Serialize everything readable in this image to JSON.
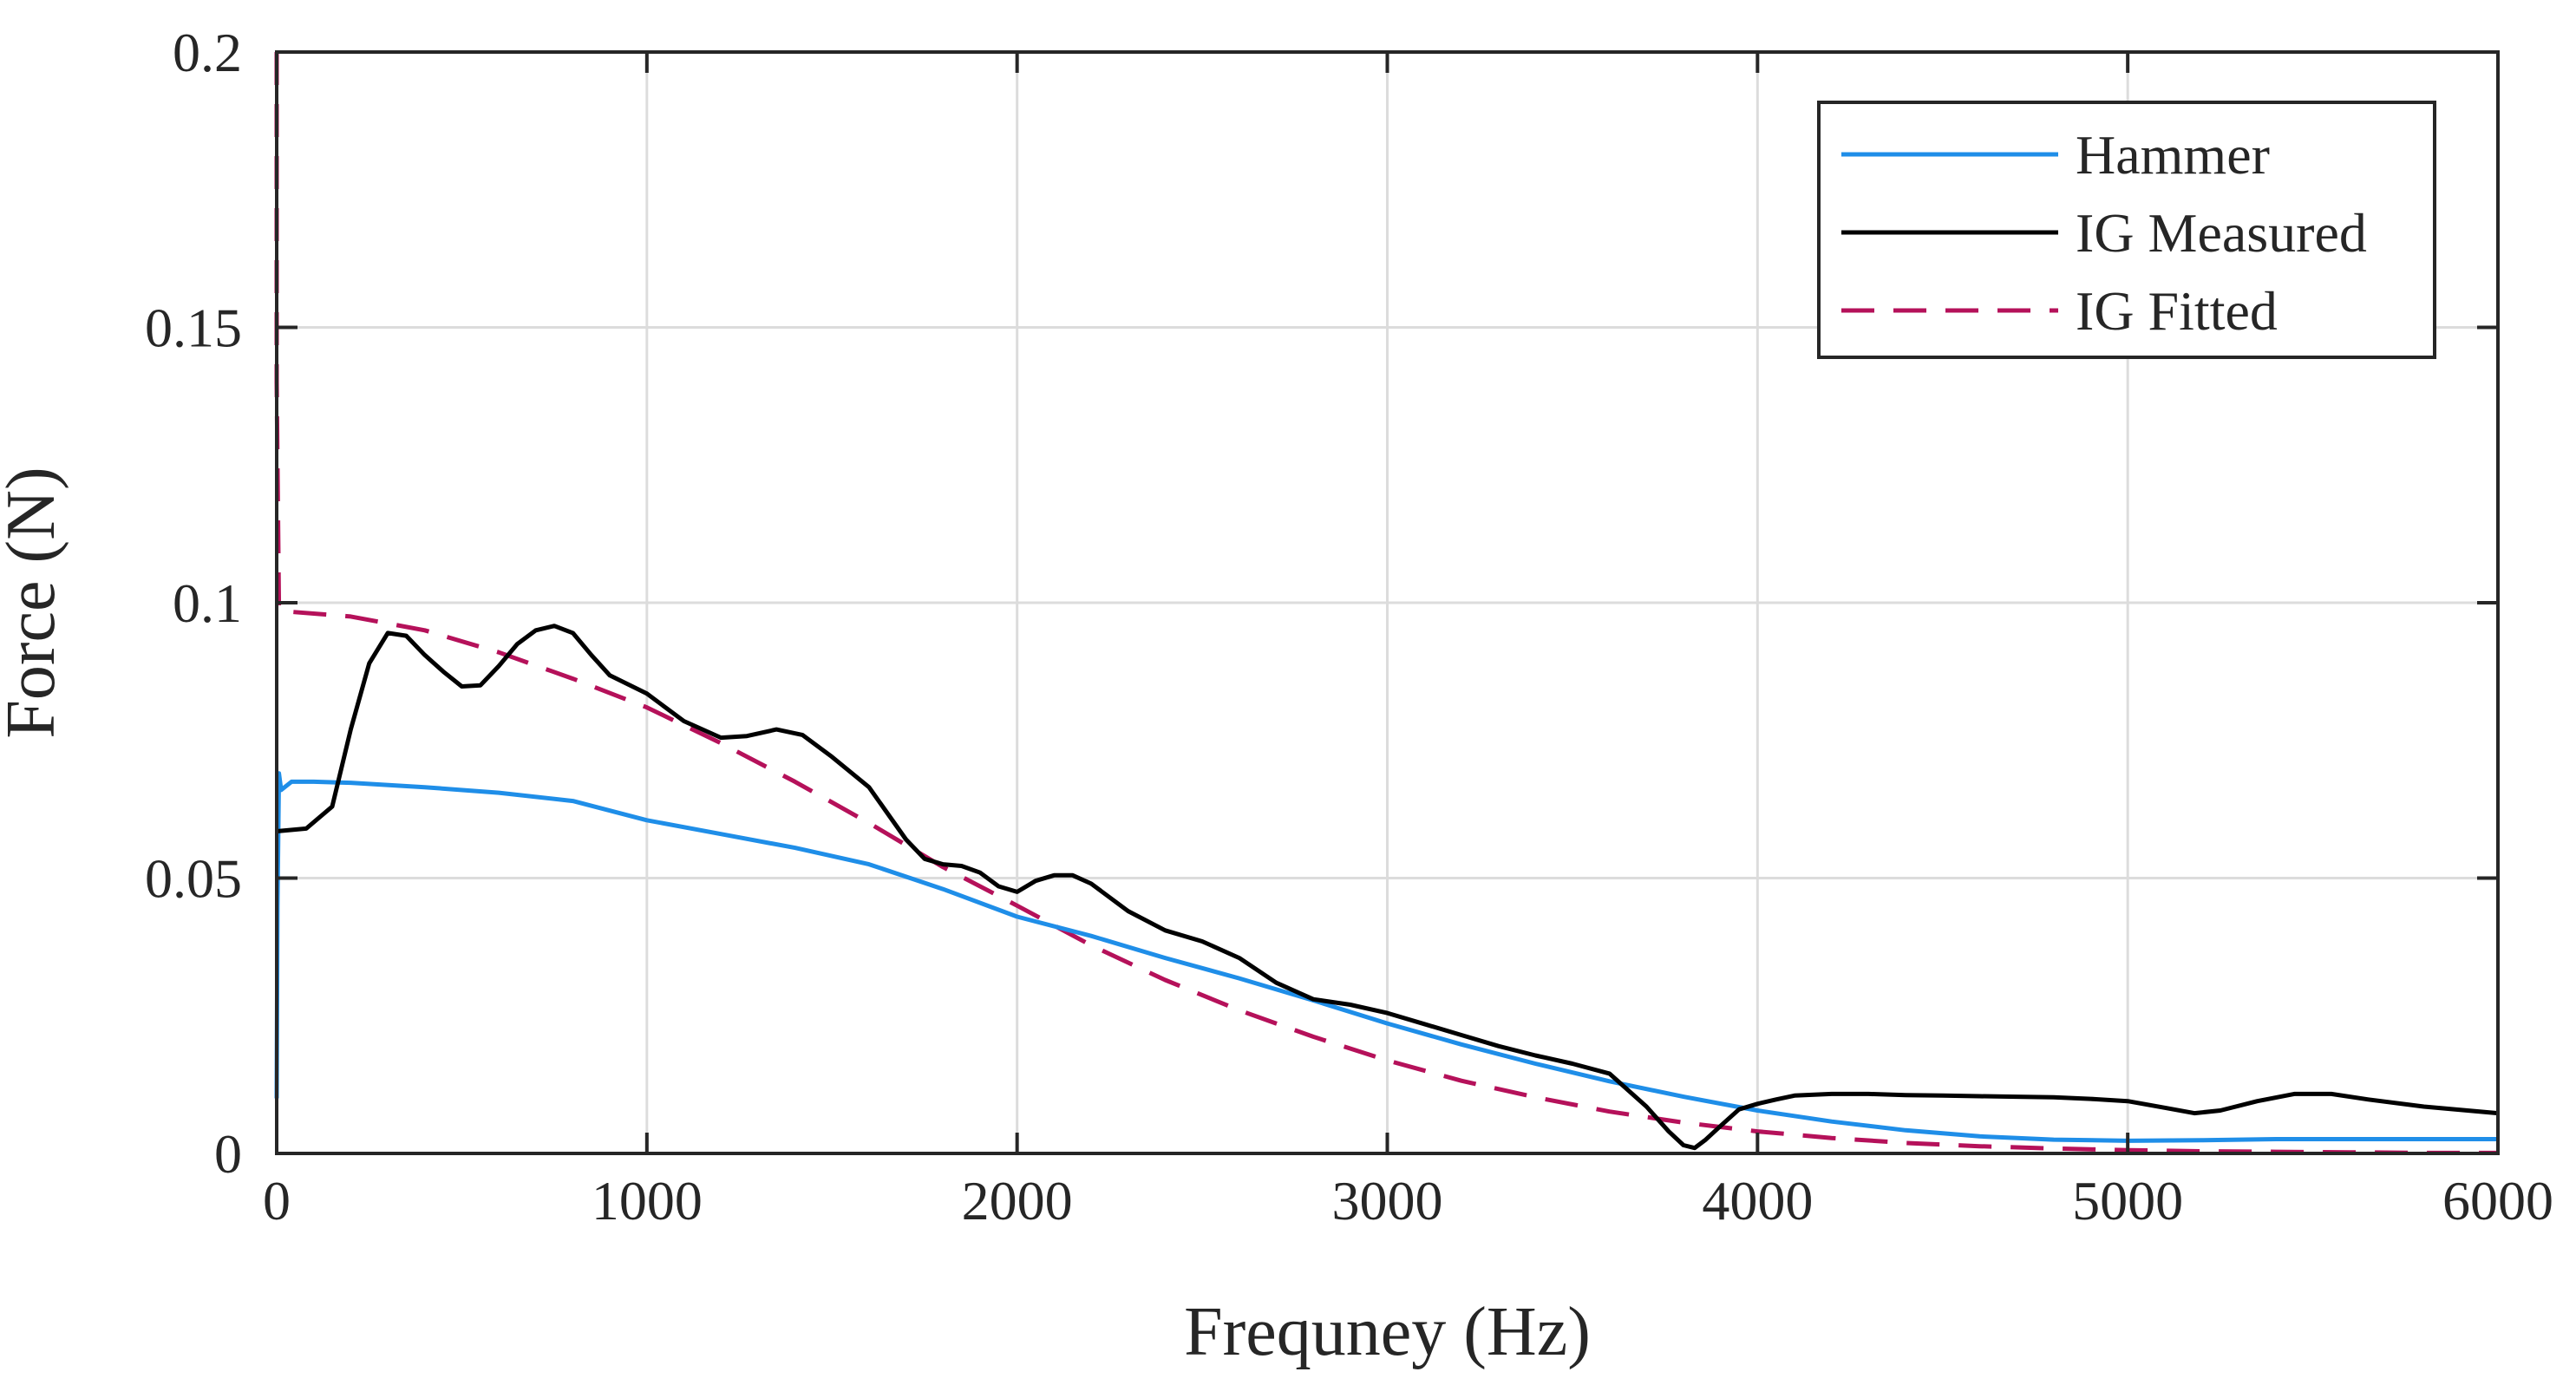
{
  "chart_data": {
    "type": "line",
    "xlabel": "Frequney (Hz)",
    "ylabel": "Force (N)",
    "xlim": [
      0,
      6000
    ],
    "ylim": [
      0,
      0.2
    ],
    "xticks": [
      0,
      1000,
      2000,
      3000,
      4000,
      5000,
      6000
    ],
    "xtick_labels": [
      "0",
      "1000",
      "2000",
      "3000",
      "4000",
      "5000",
      "6000"
    ],
    "yticks": [
      0,
      0.05,
      0.1,
      0.15,
      0.2
    ],
    "ytick_labels": [
      "0",
      "0.05",
      "0.1",
      "0.15",
      "0.2"
    ],
    "grid": true,
    "legend": {
      "position": "top-right"
    },
    "series": [
      {
        "name": "Hammer",
        "color": "#1f8ee8",
        "style": "solid",
        "x": [
          0,
          2,
          6,
          12,
          40,
          100,
          200,
          400,
          600,
          800,
          1000,
          1200,
          1400,
          1600,
          1800,
          2000,
          2200,
          2400,
          2600,
          2800,
          3000,
          3200,
          3400,
          3600,
          3800,
          4000,
          4200,
          4400,
          4600,
          4800,
          5000,
          5200,
          5400,
          5600,
          5800,
          6000
        ],
        "y": [
          0.01,
          0.045,
          0.069,
          0.066,
          0.0675,
          0.0675,
          0.0673,
          0.0665,
          0.0655,
          0.064,
          0.0605,
          0.058,
          0.0555,
          0.0525,
          0.048,
          0.043,
          0.0395,
          0.0355,
          0.0318,
          0.0278,
          0.0236,
          0.0198,
          0.0163,
          0.0131,
          0.0103,
          0.0078,
          0.0058,
          0.0042,
          0.0031,
          0.0025,
          0.0023,
          0.0024,
          0.0026,
          0.0026,
          0.0026,
          0.0026
        ]
      },
      {
        "name": "IG Measured",
        "color": "#000000",
        "style": "solid",
        "x": [
          0,
          80,
          150,
          200,
          250,
          300,
          350,
          400,
          450,
          500,
          550,
          600,
          650,
          700,
          750,
          800,
          850,
          900,
          1000,
          1100,
          1200,
          1270,
          1350,
          1420,
          1500,
          1600,
          1700,
          1750,
          1800,
          1850,
          1900,
          1950,
          2000,
          2050,
          2100,
          2150,
          2200,
          2300,
          2400,
          2500,
          2600,
          2700,
          2800,
          2900,
          3000,
          3100,
          3200,
          3300,
          3400,
          3500,
          3600,
          3700,
          3760,
          3800,
          3830,
          3860,
          3900,
          3950,
          4000,
          4050,
          4100,
          4200,
          4300,
          4400,
          4500,
          4600,
          4700,
          4800,
          4900,
          5000,
          5100,
          5180,
          5250,
          5350,
          5450,
          5550,
          5650,
          5800,
          6000
        ],
        "y": [
          0.0585,
          0.059,
          0.063,
          0.077,
          0.089,
          0.0945,
          0.094,
          0.0905,
          0.0875,
          0.0848,
          0.085,
          0.0885,
          0.0925,
          0.095,
          0.0958,
          0.0945,
          0.0905,
          0.0868,
          0.0835,
          0.0785,
          0.0755,
          0.0758,
          0.077,
          0.076,
          0.072,
          0.0665,
          0.057,
          0.0535,
          0.0525,
          0.0522,
          0.051,
          0.0485,
          0.0475,
          0.0495,
          0.0505,
          0.0505,
          0.049,
          0.044,
          0.0405,
          0.0385,
          0.0355,
          0.031,
          0.028,
          0.027,
          0.0255,
          0.0235,
          0.0215,
          0.0195,
          0.0178,
          0.0163,
          0.0145,
          0.0085,
          0.004,
          0.0015,
          0.001,
          0.0025,
          0.005,
          0.008,
          0.009,
          0.0098,
          0.0105,
          0.0108,
          0.0108,
          0.0106,
          0.0105,
          0.0104,
          0.0103,
          0.0102,
          0.0099,
          0.0095,
          0.0083,
          0.0073,
          0.0078,
          0.0095,
          0.0108,
          0.0108,
          0.0098,
          0.0085,
          0.0073
        ]
      },
      {
        "name": "IG Fitted",
        "color": "#b5115a",
        "style": "dashed",
        "x": [
          0,
          0,
          6,
          10,
          200,
          400,
          600,
          800,
          1000,
          1200,
          1400,
          1600,
          1800,
          2000,
          2200,
          2400,
          2600,
          2800,
          3000,
          3200,
          3400,
          3600,
          3800,
          4000,
          4200,
          4400,
          4600,
          4800,
          5000,
          5200,
          5400,
          5600,
          5800,
          6000
        ],
        "y": [
          0.2,
          0.14,
          0.099,
          0.0985,
          0.0975,
          0.095,
          0.091,
          0.0862,
          0.081,
          0.0745,
          0.0675,
          0.06,
          0.052,
          0.045,
          0.0378,
          0.0315,
          0.026,
          0.0212,
          0.0169,
          0.0132,
          0.0102,
          0.0076,
          0.0056,
          0.004,
          0.0028,
          0.0019,
          0.0013,
          0.0009,
          0.0006,
          0.0004,
          0.0003,
          0.0002,
          0.0001,
          0.0001
        ]
      }
    ]
  }
}
